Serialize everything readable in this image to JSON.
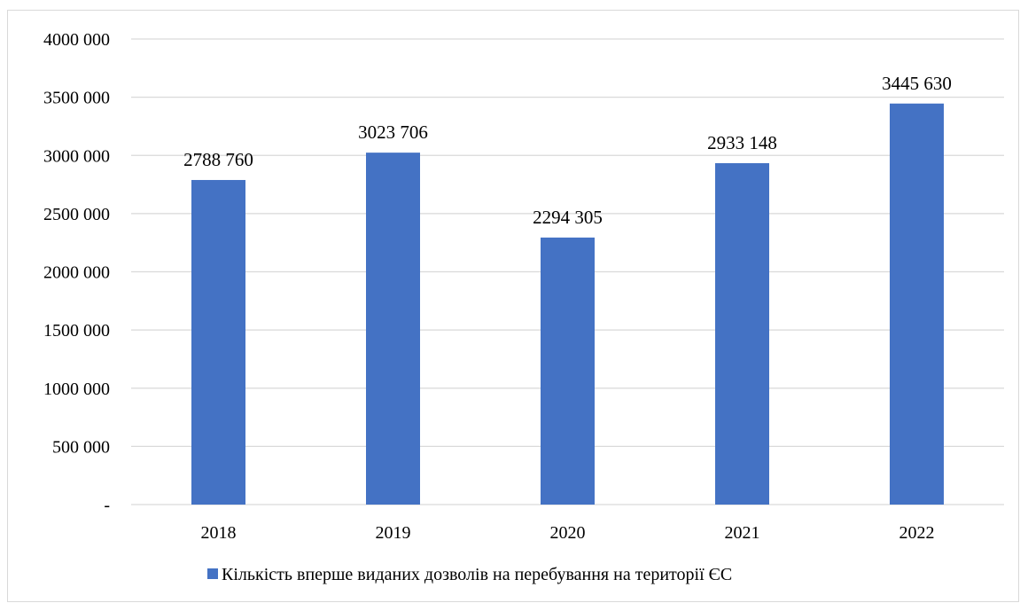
{
  "chart_data": {
    "type": "bar",
    "categories": [
      "2018",
      "2019",
      "2020",
      "2021",
      "2022"
    ],
    "series": [
      {
        "name": "Кількість вперше виданих дозволів на перебування на території ЄС",
        "values": [
          2788760,
          3023706,
          2294305,
          2933148,
          3445630
        ],
        "value_labels": [
          "2788 760",
          "3023 706",
          "2294 305",
          "2933 148",
          "3445 630"
        ],
        "color": "#4472c4"
      }
    ],
    "y_ticks": [
      0,
      500000,
      1000000,
      1500000,
      2000000,
      2500000,
      3000000,
      3500000,
      4000000
    ],
    "y_tick_labels": [
      "-",
      "500 000",
      "1000 000",
      "1500 000",
      "2000 000",
      "2500 000",
      "3000 000",
      "3500 000",
      "4000 000"
    ],
    "ylim": [
      0,
      4000000
    ],
    "grid": true,
    "gridline_color": "#d9d9d9",
    "legend_position": "bottom",
    "title": "",
    "xlabel": "",
    "ylabel": ""
  }
}
